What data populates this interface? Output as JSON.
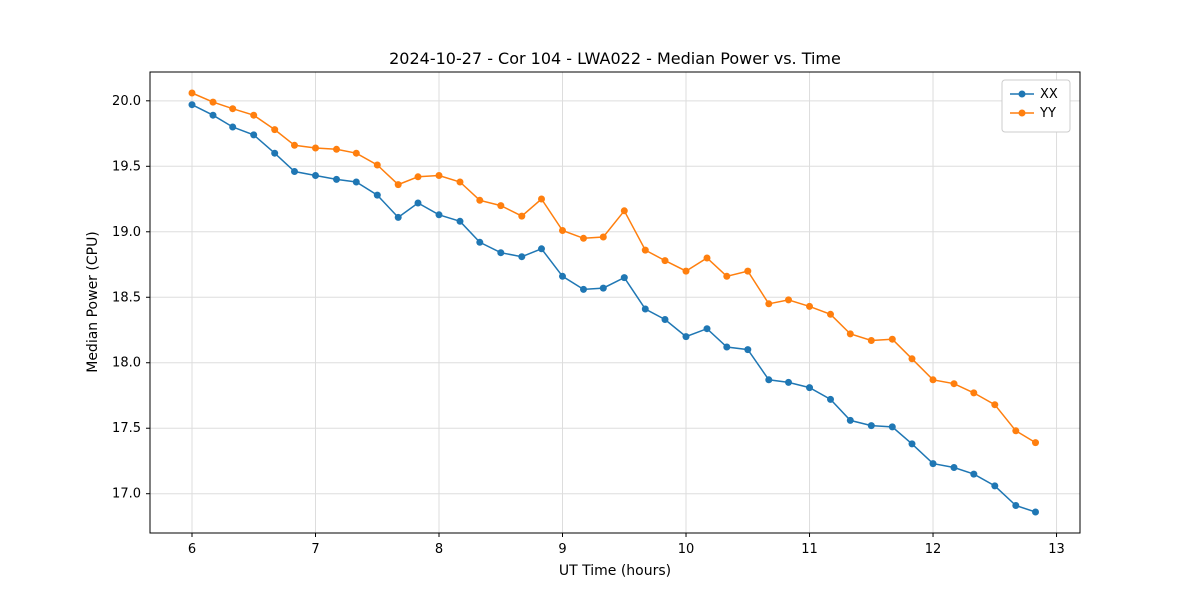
{
  "chart_data": {
    "type": "line",
    "title": "2024-10-27 - Cor 104 - LWA022 - Median Power vs. Time",
    "xlabel": "UT Time (hours)",
    "ylabel": "Median Power (CPU)",
    "xlim": [
      5.66,
      13.19
    ],
    "ylim": [
      16.7,
      20.22
    ],
    "xticks": [
      6,
      7,
      8,
      9,
      10,
      11,
      12,
      13
    ],
    "yticks": [
      17.0,
      17.5,
      18.0,
      18.5,
      19.0,
      19.5,
      20.0
    ],
    "grid": true,
    "legend_position": "upper right",
    "marker": "circle",
    "x": [
      6.0,
      6.17,
      6.33,
      6.5,
      6.67,
      6.83,
      7.0,
      7.17,
      7.33,
      7.5,
      7.67,
      7.83,
      8.0,
      8.17,
      8.33,
      8.5,
      8.67,
      8.83,
      9.0,
      9.17,
      9.33,
      9.5,
      9.67,
      9.83,
      10.0,
      10.17,
      10.33,
      10.5,
      10.67,
      10.83,
      11.0,
      11.17,
      11.33,
      11.5,
      11.67,
      11.83,
      12.0,
      12.17,
      12.33,
      12.5,
      12.67,
      12.83
    ],
    "series": [
      {
        "name": "XX",
        "color": "#1f77b4",
        "values": [
          19.97,
          19.89,
          19.8,
          19.74,
          19.6,
          19.46,
          19.43,
          19.4,
          19.38,
          19.28,
          19.11,
          19.22,
          19.13,
          19.08,
          18.92,
          18.84,
          18.81,
          18.87,
          18.66,
          18.56,
          18.57,
          18.65,
          18.41,
          18.33,
          18.2,
          18.26,
          18.12,
          18.1,
          17.87,
          17.85,
          17.81,
          17.72,
          17.56,
          17.52,
          17.51,
          17.38,
          17.23,
          17.2,
          17.15,
          17.06,
          16.91,
          16.86
        ]
      },
      {
        "name": "YY",
        "color": "#ff7f0e",
        "values": [
          20.06,
          19.99,
          19.94,
          19.89,
          19.78,
          19.66,
          19.64,
          19.63,
          19.6,
          19.51,
          19.36,
          19.42,
          19.43,
          19.38,
          19.24,
          19.2,
          19.12,
          19.25,
          19.01,
          18.95,
          18.96,
          19.16,
          18.86,
          18.78,
          18.7,
          18.8,
          18.66,
          18.7,
          18.45,
          18.48,
          18.43,
          18.37,
          18.22,
          18.17,
          18.18,
          18.03,
          17.87,
          17.84,
          17.77,
          17.68,
          17.48,
          17.39
        ]
      }
    ]
  }
}
